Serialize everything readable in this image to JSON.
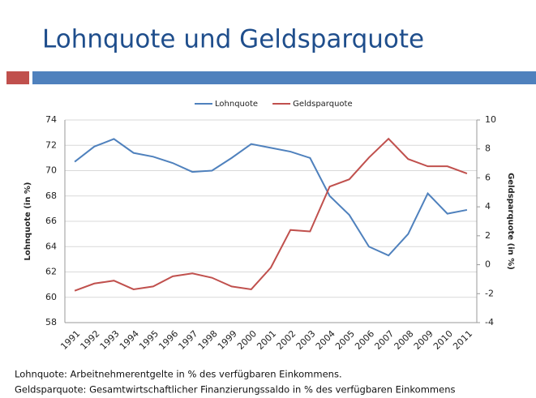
{
  "slide": {
    "title": "Lohnquote und Geldsparquote",
    "notes": [
      "Lohnquote: Arbeitnehmerentgelte in % des verfügbaren Einkommens.",
      "Geldsparquote: Gesamtwirtschaftlicher Finanzierungssaldo in % des verfügbaren Einkommens"
    ]
  },
  "chart_data": {
    "type": "line",
    "categories": [
      "1991",
      "1992",
      "1993",
      "1994",
      "1995",
      "1996",
      "1997",
      "1998",
      "1999",
      "2000",
      "2001",
      "2002",
      "2003",
      "2004",
      "2005",
      "2006",
      "2007",
      "2008",
      "2009",
      "2010",
      "2011"
    ],
    "series": [
      {
        "name": "Lohnquote",
        "color": "#4f81bd",
        "axis": "y",
        "values": [
          70.7,
          71.9,
          72.5,
          71.4,
          71.1,
          70.6,
          69.9,
          70.0,
          71.0,
          72.1,
          71.8,
          71.5,
          71.0,
          68.0,
          66.5,
          64.0,
          63.3,
          65.0,
          68.2,
          66.6,
          66.9
        ]
      },
      {
        "name": "Geldsparquote",
        "color": "#c0504d",
        "axis": "y2",
        "values": [
          -1.8,
          -1.3,
          -1.1,
          -1.7,
          -1.5,
          -0.8,
          -0.6,
          -0.9,
          -1.5,
          -1.7,
          -0.2,
          2.4,
          2.3,
          5.4,
          5.9,
          7.4,
          8.7,
          7.3,
          6.8,
          6.8,
          6.3
        ]
      }
    ],
    "ylabel": "Lohnquote (in %)",
    "y2label": "Geldsparquote (in %)",
    "ylim": [
      58,
      74
    ],
    "yticks": [
      58,
      60,
      62,
      64,
      66,
      68,
      70,
      72,
      74
    ],
    "y2lim": [
      -4,
      10
    ],
    "y2ticks": [
      -4,
      -2,
      0,
      2,
      4,
      6,
      8,
      10
    ],
    "grid": true,
    "legend": "top"
  }
}
